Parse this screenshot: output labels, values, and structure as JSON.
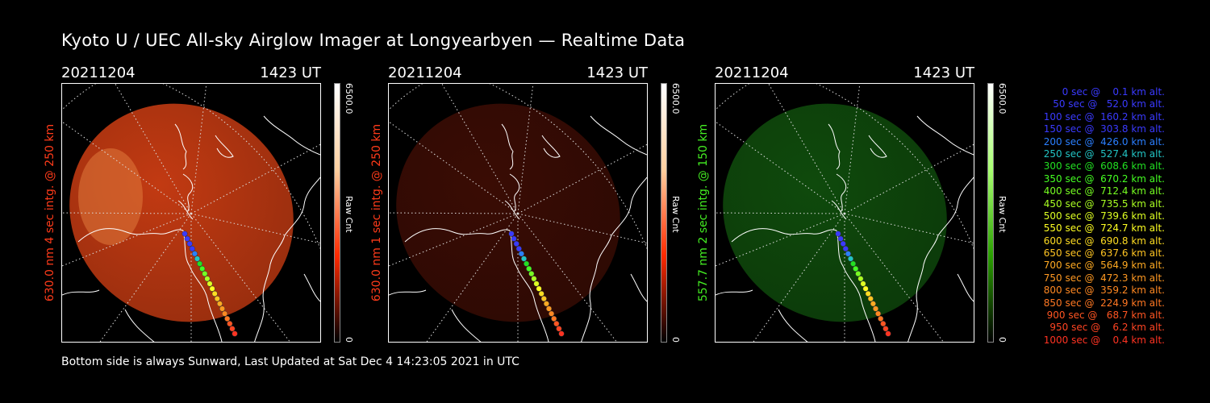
{
  "title": "Kyoto U / UEC All-sky Airglow Imager at Longyearbyen — Realtime Data",
  "footer": "Bottom side is always Sunward, Last Updated at Sat Dec  4 14:23:05 2021 in UTC",
  "chart_data": [
    {
      "type": "heatmap",
      "date": "20211204",
      "time": "1423 UT",
      "ylabel": "630.0 nm 4 sec intg. @ 250 km",
      "label_color": "#ff3b1a",
      "colorbar": {
        "label": "Raw Cnt",
        "min": "0",
        "max": "6500.0",
        "colors": [
          "#000000",
          "#ff2a00",
          "#ffd0a0",
          "#ffffff"
        ]
      },
      "image_color": "#c23a12"
    },
    {
      "type": "heatmap",
      "date": "20211204",
      "time": "1423 UT",
      "ylabel": "630.0 nm 1 sec intg. @ 250 km",
      "label_color": "#ff3b1a",
      "colorbar": {
        "label": "Raw Cnt",
        "min": "0",
        "max": "6500.0",
        "colors": [
          "#000000",
          "#ff2a00",
          "#ffd0a0",
          "#ffffff"
        ]
      },
      "image_color": "#3a0c04"
    },
    {
      "type": "heatmap",
      "date": "20211204",
      "time": "1423 UT",
      "ylabel": "557.7 nm 2 sec intg. @ 150 km",
      "label_color": "#44ee22",
      "colorbar": {
        "label": "Raw Cnt",
        "min": "0",
        "max": "6500.0",
        "colors": [
          "#000000",
          "#2aa000",
          "#a8ff70",
          "#ffffff"
        ]
      },
      "image_color": "#0f4a0c"
    }
  ],
  "trajectory": {
    "entries": [
      {
        "sec": 0,
        "alt": 0.1,
        "text": "   0 sec @    0.1 km alt.",
        "color": "#3a3aff"
      },
      {
        "sec": 50,
        "alt": 52.0,
        "text": "  50 sec @   52.0 km alt.",
        "color": "#3a3aff"
      },
      {
        "sec": 100,
        "alt": 160.2,
        "text": " 100 sec @  160.2 km alt.",
        "color": "#3a3aff"
      },
      {
        "sec": 150,
        "alt": 303.8,
        "text": " 150 sec @  303.8 km alt.",
        "color": "#3a3aff"
      },
      {
        "sec": 200,
        "alt": 426.0,
        "text": " 200 sec @  426.0 km alt.",
        "color": "#2a7fff"
      },
      {
        "sec": 250,
        "alt": 527.4,
        "text": " 250 sec @  527.4 km alt.",
        "color": "#22c4c4"
      },
      {
        "sec": 300,
        "alt": 608.6,
        "text": " 300 sec @  608.6 km alt.",
        "color": "#22e022"
      },
      {
        "sec": 350,
        "alt": 670.2,
        "text": " 350 sec @  670.2 km alt.",
        "color": "#44ff22"
      },
      {
        "sec": 400,
        "alt": 712.4,
        "text": " 400 sec @  712.4 km alt.",
        "color": "#77ff22"
      },
      {
        "sec": 450,
        "alt": 735.5,
        "text": " 450 sec @  735.5 km alt.",
        "color": "#aaff22"
      },
      {
        "sec": 500,
        "alt": 739.6,
        "text": " 500 sec @  739.6 km alt.",
        "color": "#ddff22"
      },
      {
        "sec": 550,
        "alt": 724.7,
        "text": " 550 sec @  724.7 km alt.",
        "color": "#ffff22"
      },
      {
        "sec": 600,
        "alt": 690.8,
        "text": " 600 sec @  690.8 km alt.",
        "color": "#ffdd22"
      },
      {
        "sec": 650,
        "alt": 637.6,
        "text": " 650 sec @  637.6 km alt.",
        "color": "#ffc422"
      },
      {
        "sec": 700,
        "alt": 564.9,
        "text": " 700 sec @  564.9 km alt.",
        "color": "#ffaa22"
      },
      {
        "sec": 750,
        "alt": 472.3,
        "text": " 750 sec @  472.3 km alt.",
        "color": "#ff9922"
      },
      {
        "sec": 800,
        "alt": 359.2,
        "text": " 800 sec @  359.2 km alt.",
        "color": "#ff8822"
      },
      {
        "sec": 850,
        "alt": 224.9,
        "text": " 850 sec @  224.9 km alt.",
        "color": "#ff7722"
      },
      {
        "sec": 900,
        "alt": 68.7,
        "text": " 900 sec @   68.7 km alt.",
        "color": "#ff5522"
      },
      {
        "sec": 950,
        "alt": 6.2,
        "text": " 950 sec @    6.2 km alt.",
        "color": "#ff4422"
      },
      {
        "sec": 1000,
        "alt": 0.4,
        "text": "1000 sec @    0.4 km alt.",
        "color": "#ff3322"
      }
    ]
  }
}
